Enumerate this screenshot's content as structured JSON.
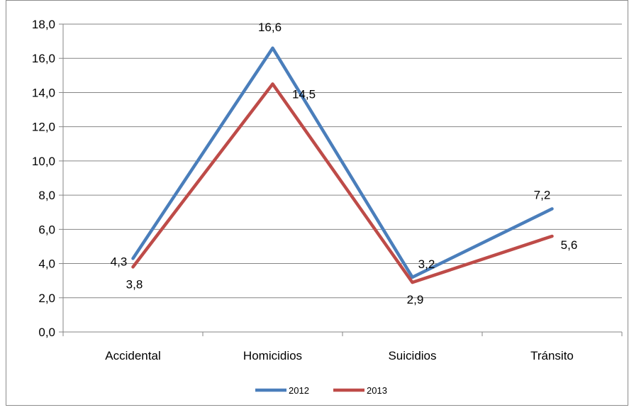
{
  "chart_data": {
    "type": "line",
    "title": "",
    "xlabel": "",
    "ylabel": "",
    "categories": [
      "Accidental",
      "Homicidios",
      "Suicidios",
      "Tránsito"
    ],
    "series": [
      {
        "name": "2012",
        "color": "#4a7ebb",
        "values": [
          4.3,
          16.6,
          3.2,
          7.2
        ],
        "labels": [
          "4,3",
          "16,6",
          "3,2",
          "7,2"
        ]
      },
      {
        "name": "2013",
        "color": "#be4b48",
        "values": [
          3.8,
          14.5,
          2.9,
          5.6
        ],
        "labels": [
          "3,8",
          "14,5",
          "2,9",
          "5,6"
        ]
      }
    ],
    "ylim": [
      0,
      18
    ],
    "y_ticks": [
      0,
      2,
      4,
      6,
      8,
      10,
      12,
      14,
      16,
      18
    ],
    "y_tick_labels": [
      "0,0",
      "2,0",
      "4,0",
      "6,0",
      "8,0",
      "10,0",
      "12,0",
      "14,0",
      "16,0",
      "18,0"
    ],
    "grid": true,
    "legend_position": "bottom"
  }
}
